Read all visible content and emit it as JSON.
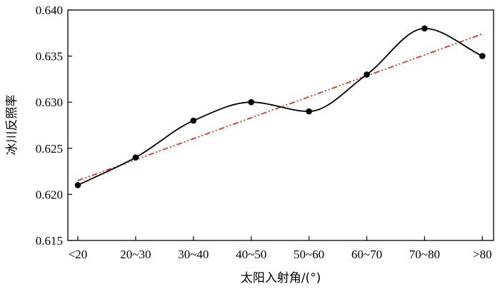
{
  "chart_data": {
    "type": "line",
    "categories": [
      "<20",
      "20~30",
      "30~40",
      "40~50",
      "50~60",
      "60~70",
      "70~80",
      ">80"
    ],
    "series": [
      {
        "values": [
          0.621,
          0.624,
          0.628,
          0.63,
          0.629,
          0.633,
          0.638,
          0.635
        ],
        "style": "smooth line with circle markers",
        "color": "#000000"
      },
      {
        "values": [
          0.6215,
          0.6238,
          0.6261,
          0.6284,
          0.6307,
          0.633,
          0.6352,
          0.6374
        ],
        "style": "dash-dot linear trend line",
        "color": "#d0392b"
      }
    ],
    "xlabel": "太阳入射角/(°)",
    "ylabel": "冰川反照率",
    "ylim": [
      0.615,
      0.64
    ],
    "yticks": [
      "0.615",
      "0.620",
      "0.625",
      "0.630",
      "0.635",
      "0.640"
    ],
    "grid": false,
    "legend": "none"
  }
}
